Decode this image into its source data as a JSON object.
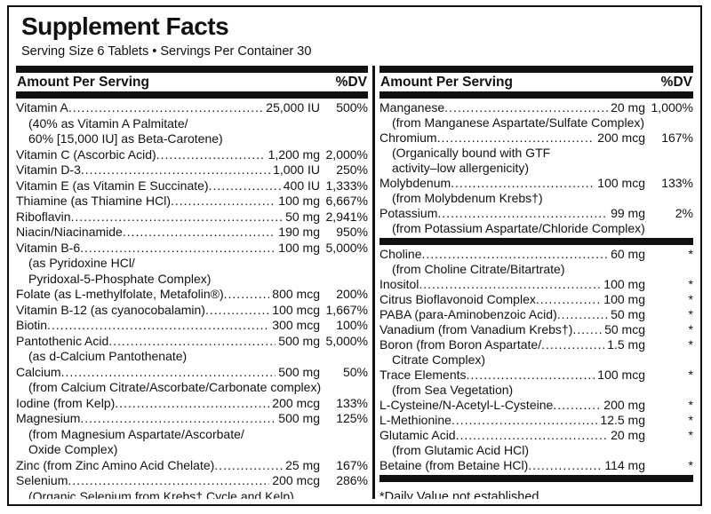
{
  "colors": {
    "ink": "#111111",
    "paper": "#ffffff"
  },
  "header": {
    "title": "Supplement Facts",
    "serving_line": "Serving Size 6 Tablets • Servings Per Container 30"
  },
  "columns": [
    {
      "id": "left",
      "header": {
        "amount_label": "Amount Per Serving",
        "dv_label": "%DV"
      },
      "rows": [
        {
          "type": "item",
          "name": "Vitamin A",
          "amount": "25,000 IU",
          "dv": "500%"
        },
        {
          "type": "note",
          "text": "(40% as Vitamin A Palmitate/"
        },
        {
          "type": "note",
          "text": "60% [15,000 IU] as Beta-Carotene)"
        },
        {
          "type": "item",
          "name": "Vitamin C (Ascorbic Acid)",
          "amount": "1,200 mg",
          "dv": "2,000%"
        },
        {
          "type": "item",
          "name": "Vitamin D-3",
          "amount": "1,000 IU",
          "dv": "250%"
        },
        {
          "type": "item",
          "name": "Vitamin E (as Vitamin E Succinate)",
          "amount": "400 IU",
          "dv": "1,333%"
        },
        {
          "type": "item",
          "name": "Thiamine (as Thiamine HCl)",
          "amount": "100 mg",
          "dv": "6,667%"
        },
        {
          "type": "item",
          "name": "Riboflavin",
          "amount": "50 mg",
          "dv": "2,941%"
        },
        {
          "type": "item",
          "name": "Niacin/Niacinamide",
          "amount": "190 mg",
          "dv": "950%"
        },
        {
          "type": "item",
          "name": "Vitamin B-6",
          "amount": "100 mg",
          "dv": "5,000%"
        },
        {
          "type": "note",
          "text": "(as Pyridoxine HCl/"
        },
        {
          "type": "note",
          "text": "Pyridoxal-5-Phosphate Complex)"
        },
        {
          "type": "item",
          "name": "Folate (as L-methylfolate, Metafolin®)",
          "amount": "800 mcg",
          "dv": "200%"
        },
        {
          "type": "item",
          "name": "Vitamin B-12 (as cyanocobalamin)",
          "amount": "100 mcg",
          "dv": "1,667%"
        },
        {
          "type": "item",
          "name": "Biotin",
          "amount": "300 mcg",
          "dv": "100%"
        },
        {
          "type": "item",
          "name": "Pantothenic Acid",
          "amount": "500 mg",
          "dv": "5,000%"
        },
        {
          "type": "note",
          "text": "(as d-Calcium Pantothenate)"
        },
        {
          "type": "item",
          "name": "Calcium",
          "amount": "500 mg",
          "dv": "50%"
        },
        {
          "type": "note",
          "text": "(from Calcium Citrate/Ascorbate/Carbonate complex)"
        },
        {
          "type": "item",
          "name": "Iodine (from Kelp)",
          "amount": "200 mcg",
          "dv": "133%"
        },
        {
          "type": "item",
          "name": "Magnesium",
          "amount": "500 mg",
          "dv": "125%"
        },
        {
          "type": "note",
          "text": "(from Magnesium Aspartate/Ascorbate/"
        },
        {
          "type": "note",
          "text": "Oxide Complex)"
        },
        {
          "type": "item",
          "name": "Zinc (from Zinc Amino Acid Chelate)",
          "amount": "25 mg",
          "dv": "167%"
        },
        {
          "type": "item",
          "name": "Selenium",
          "amount": "200 mcg",
          "dv": "286%"
        },
        {
          "type": "note",
          "text": "(Organic Selenium from Krebs† Cycle and Kelp)"
        }
      ]
    },
    {
      "id": "right",
      "header": {
        "amount_label": "Amount Per Serving",
        "dv_label": "%DV"
      },
      "rows": [
        {
          "type": "item",
          "name": "Manganese",
          "amount": "20 mg",
          "dv": "1,000%"
        },
        {
          "type": "note",
          "text": "(from Manganese Aspartate/Sulfate Complex)"
        },
        {
          "type": "item",
          "name": "Chromium",
          "amount": "200 mcg",
          "dv": "167%"
        },
        {
          "type": "note",
          "text": "(Organically bound with GTF"
        },
        {
          "type": "note",
          "text": "activity–low allergenicity)"
        },
        {
          "type": "item",
          "name": "Molybdenum",
          "amount": "100 mcg",
          "dv": "133%"
        },
        {
          "type": "note",
          "text": "(from Molybdenum Krebs†)"
        },
        {
          "type": "item",
          "name": "Potassium",
          "amount": "99 mg",
          "dv": "2%"
        },
        {
          "type": "note",
          "text": "(from Potassium Aspartate/Chloride Complex)"
        },
        {
          "type": "bar"
        },
        {
          "type": "item",
          "name": "Choline",
          "amount": "60 mg",
          "dv": "*"
        },
        {
          "type": "note",
          "text": "(from Choline Citrate/Bitartrate)"
        },
        {
          "type": "item",
          "name": "Inositol",
          "amount": "100 mg",
          "dv": "*"
        },
        {
          "type": "item",
          "name": "Citrus Bioflavonoid Complex",
          "amount": "100 mg",
          "dv": "*"
        },
        {
          "type": "item",
          "name": "PABA (para-Aminobenzoic Acid)",
          "amount": "50 mg",
          "dv": "*"
        },
        {
          "type": "item",
          "name": "Vanadium (from Vanadium Krebs†)",
          "amount": "50 mcg",
          "dv": "*"
        },
        {
          "type": "item",
          "name": "Boron (from Boron Aspartate/",
          "amount": "1.5 mg",
          "dv": "*"
        },
        {
          "type": "note",
          "text": "Citrate Complex)"
        },
        {
          "type": "item",
          "name": "Trace Elements",
          "amount": "100 mcg",
          "dv": "*"
        },
        {
          "type": "note",
          "text": "(from Sea Vegetation)"
        },
        {
          "type": "item",
          "name": "L-Cysteine/N-Acetyl-L-Cysteine",
          "amount": "200 mg",
          "dv": "*"
        },
        {
          "type": "item",
          "name": "L-Methionine",
          "amount": "12.5 mg",
          "dv": "*"
        },
        {
          "type": "item",
          "name": "Glutamic Acid",
          "amount": "20 mg",
          "dv": "*"
        },
        {
          "type": "note",
          "text": "(from Glutamic Acid HCl)"
        },
        {
          "type": "item",
          "name": "Betaine (from Betaine HCl)",
          "amount": "114 mg",
          "dv": "*"
        },
        {
          "type": "bar"
        },
        {
          "type": "footnote",
          "text": "*Daily Value not established."
        }
      ]
    }
  ]
}
